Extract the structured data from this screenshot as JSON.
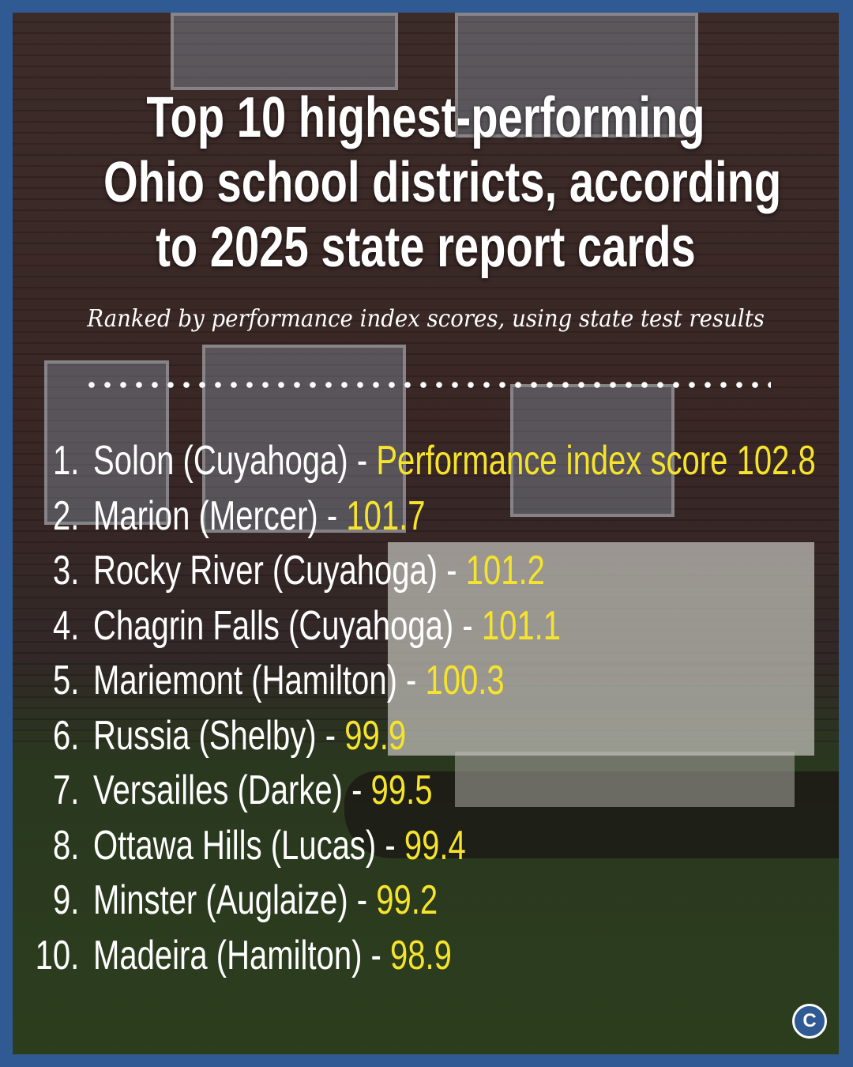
{
  "header": {
    "title_lines": [
      "Top 10 highest-performing",
      "Ohio school districts, according",
      "to 2025 state report cards"
    ],
    "subtitle": "Ranked by performance index scores, using state test results"
  },
  "items": [
    {
      "rank": "1.",
      "name": "Solon (Cuyahoga) -",
      "score_prefix": "Performance index score",
      "score": 102.8
    },
    {
      "rank": "2.",
      "name": "Marion (Mercer) -",
      "score": 101.7
    },
    {
      "rank": "3.",
      "name": "Rocky River (Cuyahoga) -",
      "score": 101.2
    },
    {
      "rank": "4.",
      "name": "Chagrin Falls (Cuyahoga) -",
      "score": 101.1
    },
    {
      "rank": "5.",
      "name": "Mariemont (Hamilton) -",
      "score": 100.3
    },
    {
      "rank": "6.",
      "name": "Russia (Shelby) -",
      "score": 99.9
    },
    {
      "rank": "7.",
      "name": "Versailles (Darke) -",
      "score": 99.5
    },
    {
      "rank": "8.",
      "name": "Ottawa Hills (Lucas) -",
      "score": 99.4
    },
    {
      "rank": "9.",
      "name": "Minster (Auglaize) -",
      "score": 99.2
    },
    {
      "rank": "10.",
      "name": "Madeira (Hamilton) -",
      "score": 98.9
    }
  ],
  "logo": "C"
}
